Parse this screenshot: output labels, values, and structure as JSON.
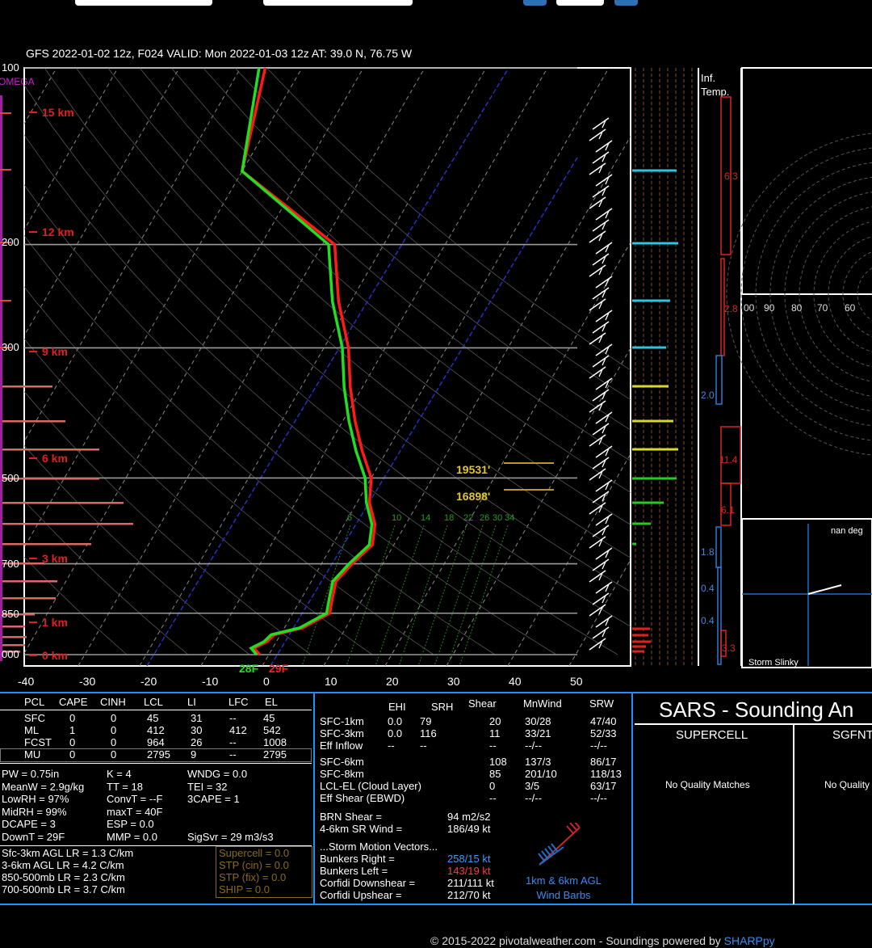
{
  "header": {
    "title": "GFS 2022-01-02 12z, F024  VALID: Mon 2022-01-03 12z  AT: 39.0 N, 76.75 W",
    "omega": "OMEGA"
  },
  "chart_data": {
    "type": "line",
    "title": "",
    "xlabel": "",
    "ylabel": "",
    "x_ticks": [
      "-40",
      "-30",
      "-20",
      "-10",
      "0",
      "10",
      "20",
      "30",
      "40",
      "50"
    ],
    "xlim": [
      -40,
      50
    ],
    "ylim_mb": [
      1000,
      100
    ],
    "pressure_ticks": [
      "100",
      "200",
      "300",
      "500",
      "700",
      "850",
      "000"
    ],
    "height_labels": [
      "15 km",
      "12 km",
      "9 km",
      "6 km",
      "3 km",
      "1 km",
      "0 km"
    ],
    "series": [
      {
        "name": "",
        "color": "#ff1a1a",
        "pressure": [
          1000,
          975,
          950,
          925,
          900,
          850,
          800,
          750,
          700,
          650,
          600,
          550,
          500,
          450,
          400,
          350,
          300,
          250,
          200,
          150,
          100
        ],
        "temperature": [
          -1.5,
          -3,
          -1.5,
          -1,
          3,
          6,
          5,
          4,
          5,
          6.5,
          5,
          2,
          0,
          -4,
          -8,
          -12,
          -16,
          -22,
          -28,
          -50,
          -56
        ]
      },
      {
        "name": "",
        "color": "#22dd22",
        "pressure": [
          1000,
          975,
          950,
          925,
          900,
          850,
          800,
          750,
          700,
          650,
          600,
          550,
          500,
          450,
          400,
          350,
          300,
          250,
          200,
          150,
          100
        ],
        "dewpoint": [
          -2,
          -3.5,
          -2,
          -1.5,
          2.5,
          5.5,
          4.5,
          3.5,
          4.5,
          6,
          4.5,
          1.5,
          -1,
          -5,
          -9,
          -13,
          -17,
          -23,
          -29,
          -50,
          -57
        ]
      }
    ],
    "surface_temp": "28F",
    "surface_dewpoint": "29F",
    "mixing_ratio_labels": [
      "6",
      "10",
      "14",
      "18",
      "22",
      "26",
      "30",
      "34"
    ],
    "freezing_levels": [
      "19531'",
      "16898'"
    ],
    "inflow_panel": {
      "title": "Inf. Temp.",
      "values": [
        "6.3",
        "2.8",
        "2.0",
        "11.4",
        "6.1",
        "1.8",
        "0.4",
        "0.4",
        "3.3"
      ]
    },
    "hodograph_rings": [
      "00",
      "90",
      "80",
      "70",
      "60"
    ],
    "storm_slinky": {
      "label": "nan deg",
      "title": "Storm Slinky"
    }
  },
  "parcels": {
    "columns": [
      "PCL",
      "CAPE",
      "CINH",
      "LCL",
      "LI",
      "LFC",
      "EL"
    ],
    "rows": [
      [
        "SFC",
        "0",
        "0",
        "45",
        "31",
        "--",
        "45"
      ],
      [
        "ML",
        "1",
        "0",
        "412",
        "30",
        "412",
        "542"
      ],
      [
        "FCST",
        "0",
        "0",
        "964",
        "26",
        "--",
        "1008"
      ],
      [
        "MU",
        "0",
        "0",
        "2795",
        "9",
        "--",
        "2795"
      ]
    ]
  },
  "indices": [
    [
      "PW = 0.75in",
      "K = 4",
      "WNDG = 0.0"
    ],
    [
      "MeanW = 2.9g/kg",
      "TT = 18",
      "TEI = 32"
    ],
    [
      "LowRH = 97%",
      "ConvT = --F",
      "3CAPE = 1"
    ],
    [
      "MidRH = 99%",
      "maxT = 40F",
      ""
    ],
    [
      "DCAPE = 3",
      "ESP = 0.0",
      ""
    ],
    [
      "DownT = 29F",
      "MMP = 0.0",
      "SigSvr = 29 m3/s3"
    ]
  ],
  "lapse_rates": [
    "Sfc-3km AGL LR = 1.3 C/km",
    "3-6km AGL LR = 4.2 C/km",
    "850-500mb LR = 2.3 C/km",
    "700-500mb LR = 3.7 C/km"
  ],
  "composite": [
    "Supercell = 0.0",
    "STP (cin) = 0.0",
    "STP (fix) = 0.0",
    "SHIP = 0.0"
  ],
  "kinematics": {
    "columns": [
      "EHI",
      "SRH",
      "Shear",
      "MnWind",
      "SRW"
    ],
    "rows": [
      [
        "SFC-1km",
        "0.0",
        "79",
        "20",
        "30/28",
        "47/40"
      ],
      [
        "SFC-3km",
        "0.0",
        "116",
        "11",
        "33/21",
        "52/33"
      ],
      [
        "Eff Inflow",
        "--",
        "--",
        "--",
        "--/--",
        "--/--"
      ],
      [
        "SFC-6km",
        "",
        "",
        "108",
        "137/3",
        "86/17"
      ],
      [
        "SFC-8km",
        "",
        "",
        "85",
        "201/10",
        "118/13"
      ],
      [
        "LCL-EL (Cloud Layer)",
        "",
        "",
        "0",
        "3/5",
        "63/17"
      ],
      [
        "Eff Shear (EBWD)",
        "",
        "",
        "--",
        "--/--",
        "--/--"
      ]
    ],
    "brn_shear_label": "BRN Shear =",
    "brn_shear": "94 m2/s2",
    "sr_wind_label": "4-6km SR Wind =",
    "sr_wind": "186/49 kt",
    "storm_motion_title": "...Storm Motion Vectors...",
    "storm_motion": [
      [
        "Bunkers Right =",
        "258/15 kt",
        "#3b9cff"
      ],
      [
        "Bunkers Left =",
        "143/19 kt",
        "#ff3b3b"
      ],
      [
        "Corfidi Downshear =",
        "211/111 kt",
        "#ffffff"
      ],
      [
        "Corfidi Upshear =",
        "212/70 kt",
        "#ffffff"
      ]
    ],
    "barb_legend": "1km & 6km AGL Wind Barbs"
  },
  "sars": {
    "title": "SARS - Sounding An",
    "supercell": "SUPERCELL",
    "sgfnt": "SGFNT",
    "no_match": "No Quality Matches",
    "no_match_short": "No Quality"
  },
  "footer": {
    "text": "© 2015-2022 pivotalweather.com - Soundings powered by ",
    "link": "SHARPpy"
  }
}
